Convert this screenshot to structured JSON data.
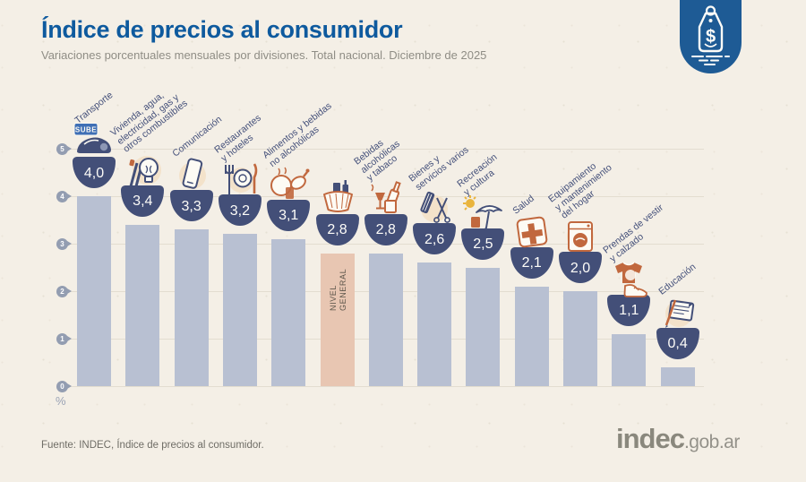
{
  "header": {
    "title": "Índice de precios al consumidor",
    "subtitle": "Variaciones porcentuales mensuales por divisiones. Total nacional. Diciembre de 2025",
    "badge_icon": "price-tag-icon"
  },
  "footer": {
    "source": "Fuente: INDEC, Índice de precios al consumidor.",
    "logo_main": "indec",
    "logo_suffix": ".gob.ar"
  },
  "colors": {
    "background": "#f4efe6",
    "title_blue": "#0e5a9e",
    "bar": "#b8c0d2",
    "bar_highlight": "#e8c6b2",
    "badge_navy": "#434f78",
    "accent_orange": "#c1683e",
    "accent_yellow": "#e9b43d",
    "tag_badge_blue": "#1e5b95",
    "grid": "#e3ddd0",
    "tick": "#939db1"
  },
  "chart_data": {
    "type": "bar",
    "title": "Índice de precios al consumidor",
    "subtitle": "Variaciones porcentuales mensuales por divisiones. Total nacional. Diciembre de 2025",
    "xlabel": "",
    "ylabel": "%",
    "unit": "%",
    "ylim": [
      0,
      5
    ],
    "yticks": [
      0,
      1,
      2,
      3,
      4,
      5
    ],
    "grid": true,
    "legend_position": "none",
    "categories": [
      "Transporte",
      "Vivienda, agua, electricidad, gas y otros combustibles",
      "Comunicación",
      "Restaurantes y hoteles",
      "Alimentos y bebidas no alcohólicas",
      "Nivel general",
      "Bebidas alcohólicas y tabaco",
      "Bienes y servicios varios",
      "Recreación y cultura",
      "Salud",
      "Equipamiento y mantenimiento del hogar",
      "Prendas de vestir y calzado",
      "Educación"
    ],
    "values": [
      4.0,
      3.4,
      3.3,
      3.2,
      3.1,
      2.8,
      2.8,
      2.6,
      2.5,
      2.1,
      2.0,
      1.1,
      0.4
    ],
    "value_labels": [
      "4,0",
      "3,4",
      "3,3",
      "3,2",
      "3,1",
      "2,8",
      "2,8",
      "2,6",
      "2,5",
      "2,1",
      "2,0",
      "1,1",
      "0,4"
    ],
    "highlight_index": 5,
    "highlight_label": "NIVEL GENERAL",
    "bars": [
      {
        "label_lines": [
          "Transporte"
        ],
        "value": 4.0,
        "display": "4,0",
        "icon": "car-sube-icon",
        "highlight": false
      },
      {
        "label_lines": [
          "Vivienda, agua,",
          "electricidad, gas y",
          "otros combustibles"
        ],
        "value": 3.4,
        "display": "3,4",
        "icon": "bulb-tools-icon",
        "highlight": false
      },
      {
        "label_lines": [
          "Comunicación"
        ],
        "value": 3.3,
        "display": "3,3",
        "icon": "phone-icon",
        "highlight": false
      },
      {
        "label_lines": [
          "Restaurantes",
          "y hoteles"
        ],
        "value": 3.2,
        "display": "3,2",
        "icon": "cutlery-icon",
        "highlight": false
      },
      {
        "label_lines": [
          "Alimentos y bebidas",
          "no alcohólicas"
        ],
        "value": 3.1,
        "display": "3,1",
        "icon": "food-plate-icon",
        "highlight": false
      },
      {
        "label_lines": [],
        "inbar_lines": [
          "NIVEL",
          "GENERAL"
        ],
        "value": 2.8,
        "display": "2,8",
        "icon": "shopping-basket-icon",
        "highlight": true
      },
      {
        "label_lines": [
          "Bebidas",
          "alcohólicas",
          "y tabaco"
        ],
        "value": 2.8,
        "display": "2,8",
        "icon": "bottle-glass-icon",
        "highlight": false
      },
      {
        "label_lines": [
          "Bienes y",
          "servicios varios"
        ],
        "value": 2.6,
        "display": "2,6",
        "icon": "comb-scissors-icon",
        "highlight": false
      },
      {
        "label_lines": [
          "Recreación",
          "y cultura"
        ],
        "value": 2.5,
        "display": "2,5",
        "icon": "umbrella-sun-icon",
        "highlight": false
      },
      {
        "label_lines": [
          "Salud"
        ],
        "value": 2.1,
        "display": "2,1",
        "icon": "medical-cross-icon",
        "highlight": false
      },
      {
        "label_lines": [
          "Equipamiento",
          "y mantenimiento",
          "del hogar"
        ],
        "value": 2.0,
        "display": "2,0",
        "icon": "washing-machine-icon",
        "highlight": false
      },
      {
        "label_lines": [
          "Prendas de vestir",
          "y calzado"
        ],
        "value": 1.1,
        "display": "1,1",
        "icon": "tshirt-sneaker-icon",
        "highlight": false
      },
      {
        "label_lines": [
          "Educación"
        ],
        "value": 0.4,
        "display": "0,4",
        "icon": "notebook-pencil-icon",
        "highlight": false
      }
    ]
  }
}
